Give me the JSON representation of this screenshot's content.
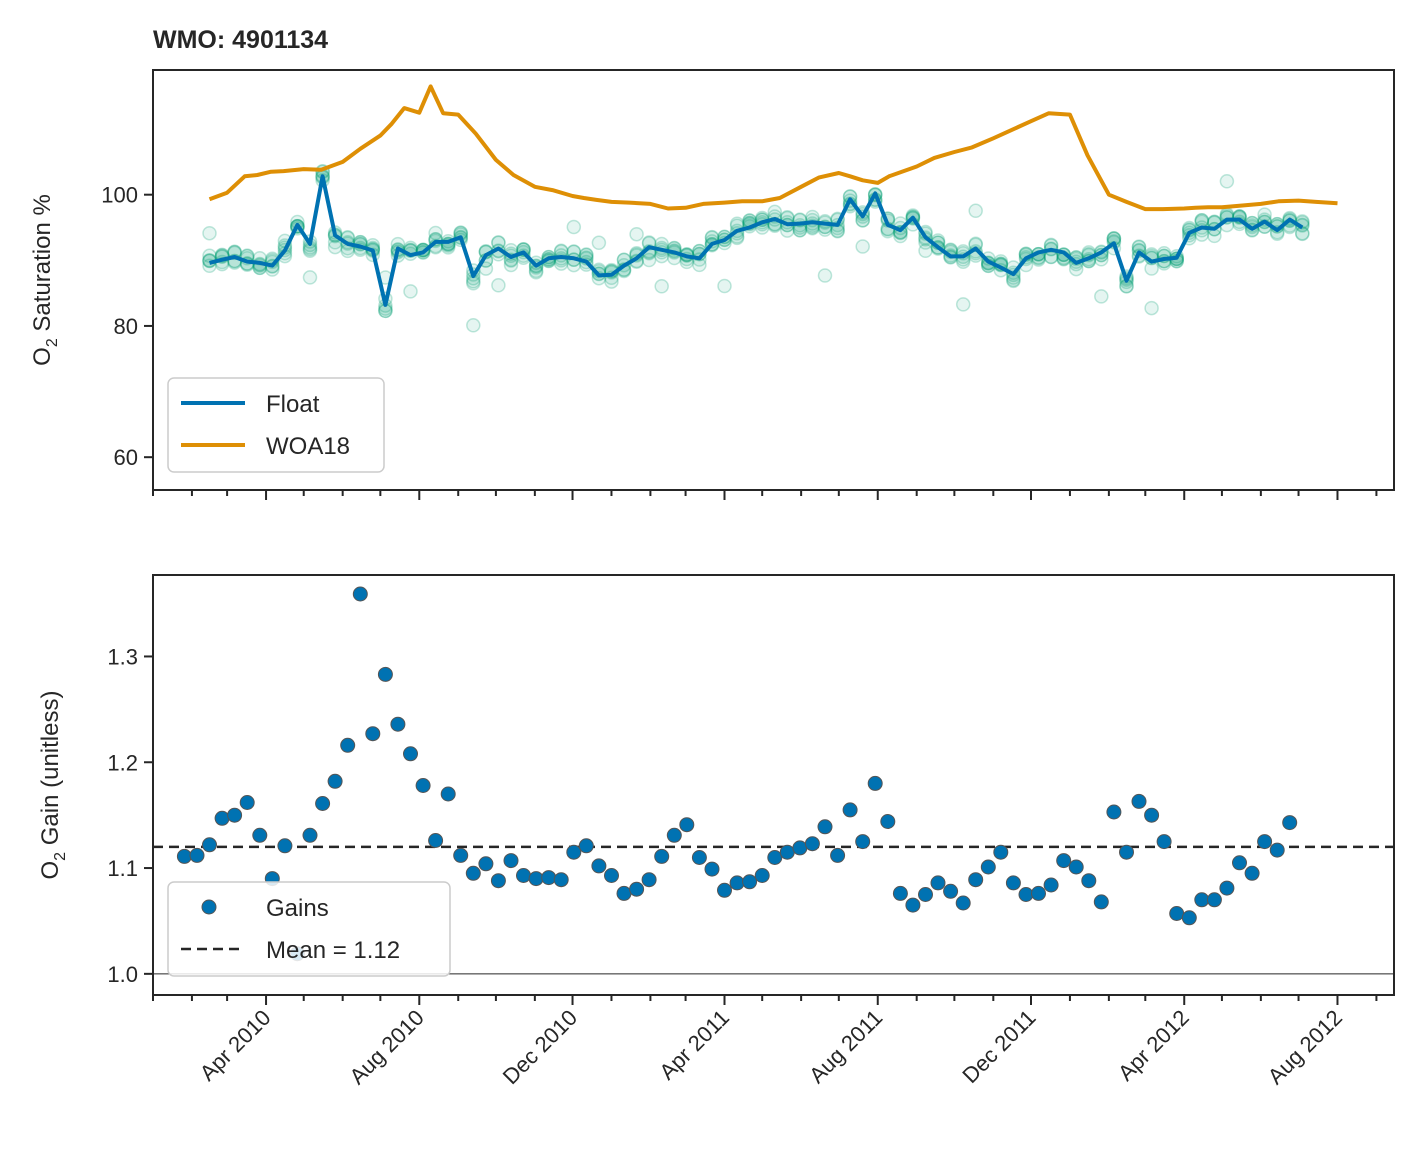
{
  "colors": {
    "float": "#0072b2",
    "woa": "#de8f05",
    "scatter": "#029e73",
    "gain": "#0072b2",
    "axis": "#262626"
  },
  "chart_data": [
    {
      "type": "line",
      "title": "WMO: 4901134",
      "ylabel_main": "O",
      "ylabel_sub": "2",
      "ylabel_rest": " Saturation %",
      "xlim": [
        "2010-01-01",
        "2012-09-15"
      ],
      "ylim": [
        55,
        119
      ],
      "yticks": [
        60,
        80,
        100
      ],
      "legend": {
        "position": "lower-left",
        "entries": [
          "Float",
          "WOA18"
        ]
      },
      "series": [
        {
          "name": "Float",
          "dates": [
            "2010-02-15",
            "2010-02-25",
            "2010-03-07",
            "2010-03-17",
            "2010-03-27",
            "2010-04-06",
            "2010-04-16",
            "2010-04-26",
            "2010-05-06",
            "2010-05-16",
            "2010-05-26",
            "2010-06-05",
            "2010-06-15",
            "2010-06-25",
            "2010-07-05",
            "2010-07-15",
            "2010-07-25",
            "2010-08-04",
            "2010-08-14",
            "2010-08-24",
            "2010-09-03",
            "2010-09-13",
            "2010-09-23",
            "2010-10-03",
            "2010-10-13",
            "2010-10-23",
            "2010-11-02",
            "2010-11-12",
            "2010-11-22",
            "2010-12-02",
            "2010-12-12",
            "2010-12-22",
            "2011-01-01",
            "2011-01-11",
            "2011-01-21",
            "2011-01-31",
            "2011-02-10",
            "2011-02-20",
            "2011-03-02",
            "2011-03-12",
            "2011-03-22",
            "2011-04-01",
            "2011-04-11",
            "2011-04-21",
            "2011-05-01",
            "2011-05-11",
            "2011-05-21",
            "2011-05-31",
            "2011-06-10",
            "2011-06-20",
            "2011-06-30",
            "2011-07-10",
            "2011-07-20",
            "2011-07-30",
            "2011-08-09",
            "2011-08-19",
            "2011-08-29",
            "2011-09-08",
            "2011-09-18",
            "2011-09-28",
            "2011-10-08",
            "2011-10-18",
            "2011-10-28",
            "2011-11-07",
            "2011-11-17",
            "2011-11-27",
            "2011-12-07",
            "2011-12-17",
            "2011-12-27",
            "2012-01-06",
            "2012-01-16",
            "2012-01-26",
            "2012-02-05",
            "2012-02-15",
            "2012-02-25",
            "2012-03-06",
            "2012-03-16",
            "2012-03-26",
            "2012-04-05",
            "2012-04-15",
            "2012-04-25",
            "2012-05-05",
            "2012-05-15",
            "2012-05-25",
            "2012-06-04",
            "2012-06-14",
            "2012-06-24",
            "2012-07-04"
          ],
          "values": [
            89.6,
            90.1,
            90.5,
            89.8,
            89.6,
            89.2,
            91.5,
            95.4,
            92.5,
            102.8,
            93.8,
            92.5,
            92.1,
            91.5,
            83.2,
            91.8,
            90.8,
            91.2,
            92.8,
            92.8,
            93.5,
            87.6,
            90.8,
            91.8,
            90.5,
            91.2,
            89.2,
            90.3,
            90.5,
            90.3,
            89.8,
            87.7,
            87.8,
            89.2,
            90.3,
            92.0,
            91.6,
            91.2,
            90.6,
            90.3,
            92.5,
            93.1,
            94.5,
            95.0,
            95.8,
            96.3,
            95.5,
            95.6,
            95.8,
            95.6,
            95.4,
            99.3,
            96.7,
            100.2,
            95.4,
            94.6,
            96.5,
            93.5,
            92.0,
            90.6,
            90.6,
            91.8,
            89.8,
            88.9,
            87.9,
            90.3,
            91.2,
            91.6,
            91.2,
            89.6,
            90.3,
            91.2,
            92.6,
            86.9,
            91.2,
            89.8,
            90.2,
            90.4,
            94.2,
            95.0,
            94.8,
            96.2,
            96.2,
            94.8,
            95.9,
            94.6,
            96.2,
            95.0
          ]
        },
        {
          "name": "WOA18",
          "dates": [
            "2010-02-15",
            "2010-03-01",
            "2010-03-15",
            "2010-03-25",
            "2010-04-05",
            "2010-04-15",
            "2010-05-01",
            "2010-05-15",
            "2010-06-01",
            "2010-06-15",
            "2010-07-01",
            "2010-07-10",
            "2010-07-20",
            "2010-08-01",
            "2010-08-10",
            "2010-08-20",
            "2010-09-01",
            "2010-09-15",
            "2010-10-01",
            "2010-10-15",
            "2010-11-01",
            "2010-11-15",
            "2010-12-01",
            "2010-12-10",
            "2010-12-20",
            "2011-01-01",
            "2011-01-15",
            "2011-02-01",
            "2011-02-15",
            "2011-03-01",
            "2011-03-15",
            "2011-04-01",
            "2011-04-15",
            "2011-05-01",
            "2011-05-15",
            "2011-06-01",
            "2011-06-15",
            "2011-07-01",
            "2011-07-10",
            "2011-07-20",
            "2011-08-01",
            "2011-08-10",
            "2011-09-01",
            "2011-09-15",
            "2011-10-01",
            "2011-10-15",
            "2011-11-01",
            "2011-12-01",
            "2011-12-15",
            "2012-01-01",
            "2012-01-15",
            "2012-02-01",
            "2012-02-15",
            "2012-03-01",
            "2012-03-15",
            "2012-04-01",
            "2012-04-10",
            "2012-04-20",
            "2012-05-01",
            "2012-05-15",
            "2012-06-01",
            "2012-06-15",
            "2012-07-01",
            "2012-07-15",
            "2012-08-01"
          ],
          "values": [
            99.3,
            100.3,
            102.8,
            103.0,
            103.5,
            103.6,
            103.9,
            103.8,
            105.0,
            107.0,
            109.0,
            110.8,
            113.2,
            112.5,
            116.5,
            112.4,
            112.2,
            109.3,
            105.3,
            103.0,
            101.2,
            100.7,
            99.8,
            99.5,
            99.2,
            98.9,
            98.8,
            98.6,
            97.9,
            98.0,
            98.6,
            98.8,
            99.0,
            99.0,
            99.5,
            101.2,
            102.6,
            103.3,
            102.8,
            102.2,
            101.8,
            102.8,
            104.3,
            105.6,
            106.5,
            107.2,
            108.6,
            111.2,
            112.4,
            112.2,
            106.0,
            100.0,
            98.9,
            97.8,
            97.8,
            97.9,
            98.0,
            98.1,
            98.1,
            98.3,
            98.6,
            99.0,
            99.1,
            98.9,
            98.7
          ]
        }
      ]
    },
    {
      "type": "scatter",
      "ylabel_main": "O",
      "ylabel_sub": "2",
      "ylabel_rest": " Gain (unitless)",
      "ylim": [
        0.98,
        1.377
      ],
      "yticks": [
        1.0,
        1.1,
        1.2,
        1.3
      ],
      "xtick_labels": [
        "Apr 2010",
        "Aug 2010",
        "Dec 2010",
        "Apr 2011",
        "Aug 2011",
        "Dec 2011",
        "Apr 2012",
        "Aug 2012"
      ],
      "xtick_dates": [
        "2010-04-01",
        "2010-08-01",
        "2010-12-01",
        "2011-04-01",
        "2011-08-01",
        "2011-12-01",
        "2012-04-01",
        "2012-08-01"
      ],
      "hline": 1.12,
      "legend": {
        "position": "lower-left",
        "entries": [
          "Gains",
          "Mean = 1.12"
        ]
      },
      "series": [
        {
          "name": "Gains",
          "values": [
            1.111,
            1.112,
            1.122,
            1.147,
            1.15,
            1.162,
            1.131,
            1.09,
            1.121,
            1.019,
            1.131,
            1.161,
            1.182,
            1.216,
            1.359,
            1.227,
            1.283,
            1.236,
            1.208,
            1.178,
            1.126,
            1.17,
            1.112,
            1.095,
            1.104,
            1.088,
            1.107,
            1.093,
            1.09,
            1.091,
            1.089,
            1.115,
            1.121,
            1.102,
            1.093,
            1.076,
            1.08,
            1.089,
            1.111,
            1.131,
            1.141,
            1.11,
            1.099,
            1.079,
            1.086,
            1.087,
            1.093,
            1.11,
            1.115,
            1.119,
            1.123,
            1.139,
            1.112,
            1.155,
            1.125,
            1.18,
            1.144,
            1.076,
            1.065,
            1.075,
            1.086,
            1.078,
            1.067,
            1.089,
            1.101,
            1.115,
            1.086,
            1.075,
            1.076,
            1.084,
            1.107,
            1.101,
            1.088,
            1.068,
            1.153,
            1.115,
            1.163,
            1.15,
            1.125,
            1.057,
            1.053,
            1.07,
            1.07,
            1.081,
            1.105,
            1.095,
            1.125,
            1.117,
            1.143
          ]
        }
      ]
    }
  ]
}
